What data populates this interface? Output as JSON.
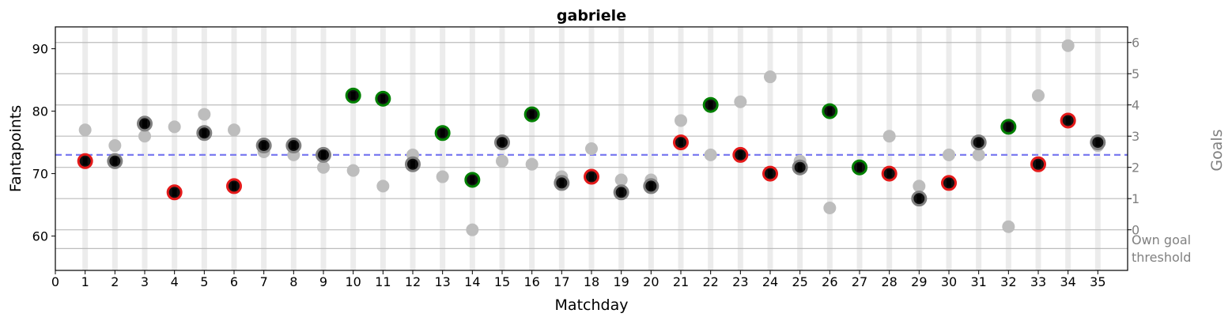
{
  "chart_data": {
    "type": "scatter",
    "title": "gabriele",
    "xlabel": "Matchday",
    "ylabel": "Fantapoints",
    "ylabel_right": "Goals",
    "xlim": [
      0,
      36
    ],
    "ylim": [
      54.5,
      93.5
    ],
    "x_ticks": [
      0,
      1,
      2,
      3,
      4,
      5,
      6,
      7,
      8,
      9,
      10,
      11,
      12,
      13,
      14,
      15,
      16,
      17,
      18,
      19,
      20,
      21,
      22,
      23,
      24,
      25,
      26,
      27,
      28,
      29,
      30,
      31,
      32,
      33,
      34,
      35
    ],
    "y_ticks": [
      60,
      70,
      80,
      90
    ],
    "right_ticks": [
      {
        "label": "6",
        "y": 91.0
      },
      {
        "label": "5",
        "y": 86.0
      },
      {
        "label": "4",
        "y": 81.0
      },
      {
        "label": "3",
        "y": 76.0
      },
      {
        "label": "2",
        "y": 71.0
      },
      {
        "label": "1",
        "y": 66.0
      },
      {
        "label": "0",
        "y": 61.0
      }
    ],
    "own_goal_label": [
      "Own goal",
      "threshold"
    ],
    "own_goal_y": 58.0,
    "mean_line": 73.0,
    "grid": "horizontal at goal levels",
    "colors": {
      "above": "#008000",
      "below": "#e41a1a",
      "neutral": "#808080",
      "marker": "#111111",
      "mean": "#7b7bf0",
      "gray_point": "#bdbdbd",
      "band": "#ececec"
    },
    "series": [
      {
        "role": "fantapoints",
        "x": [
          1,
          2,
          3,
          4,
          5,
          6,
          7,
          8,
          9,
          10,
          11,
          12,
          13,
          14,
          15,
          16,
          17,
          18,
          19,
          20,
          21,
          22,
          23,
          24,
          25,
          26,
          27,
          28,
          29,
          30,
          31,
          32,
          33,
          34,
          35
        ],
        "values": [
          72,
          72,
          78,
          67,
          76.5,
          68,
          74.5,
          74.5,
          73,
          82.5,
          82,
          71.5,
          76.5,
          69,
          75,
          79.5,
          68.5,
          69.5,
          67,
          68,
          75,
          81,
          73,
          70,
          71,
          80,
          71,
          70,
          66,
          68.5,
          75,
          77.5,
          71.5,
          78.5,
          75
        ],
        "outcome": [
          "below",
          "neutral",
          "neutral",
          "below",
          "neutral",
          "below",
          "neutral",
          "neutral",
          "neutral",
          "above",
          "above",
          "neutral",
          "above",
          "above",
          "neutral",
          "above",
          "neutral",
          "below",
          "neutral",
          "neutral",
          "below",
          "above",
          "below",
          "below",
          "neutral",
          "above",
          "above",
          "below",
          "neutral",
          "below",
          "neutral",
          "above",
          "below",
          "below",
          "neutral"
        ]
      },
      {
        "role": "secondary",
        "x": [
          1,
          2,
          3,
          4,
          5,
          6,
          7,
          8,
          9,
          10,
          11,
          12,
          13,
          14,
          15,
          16,
          17,
          18,
          19,
          20,
          21,
          22,
          23,
          24,
          25,
          26,
          27,
          28,
          29,
          30,
          31,
          32,
          33,
          34,
          35
        ],
        "values": [
          77,
          74.5,
          76,
          77.5,
          79.5,
          77,
          73.5,
          73,
          71,
          70.5,
          68,
          73,
          69.5,
          61,
          72,
          71.5,
          69.5,
          74,
          69,
          69,
          78.5,
          73,
          81.5,
          85.5,
          72,
          64.5,
          71,
          76,
          68,
          73,
          73,
          61.5,
          82.5,
          90.5,
          74.5
        ]
      }
    ]
  }
}
